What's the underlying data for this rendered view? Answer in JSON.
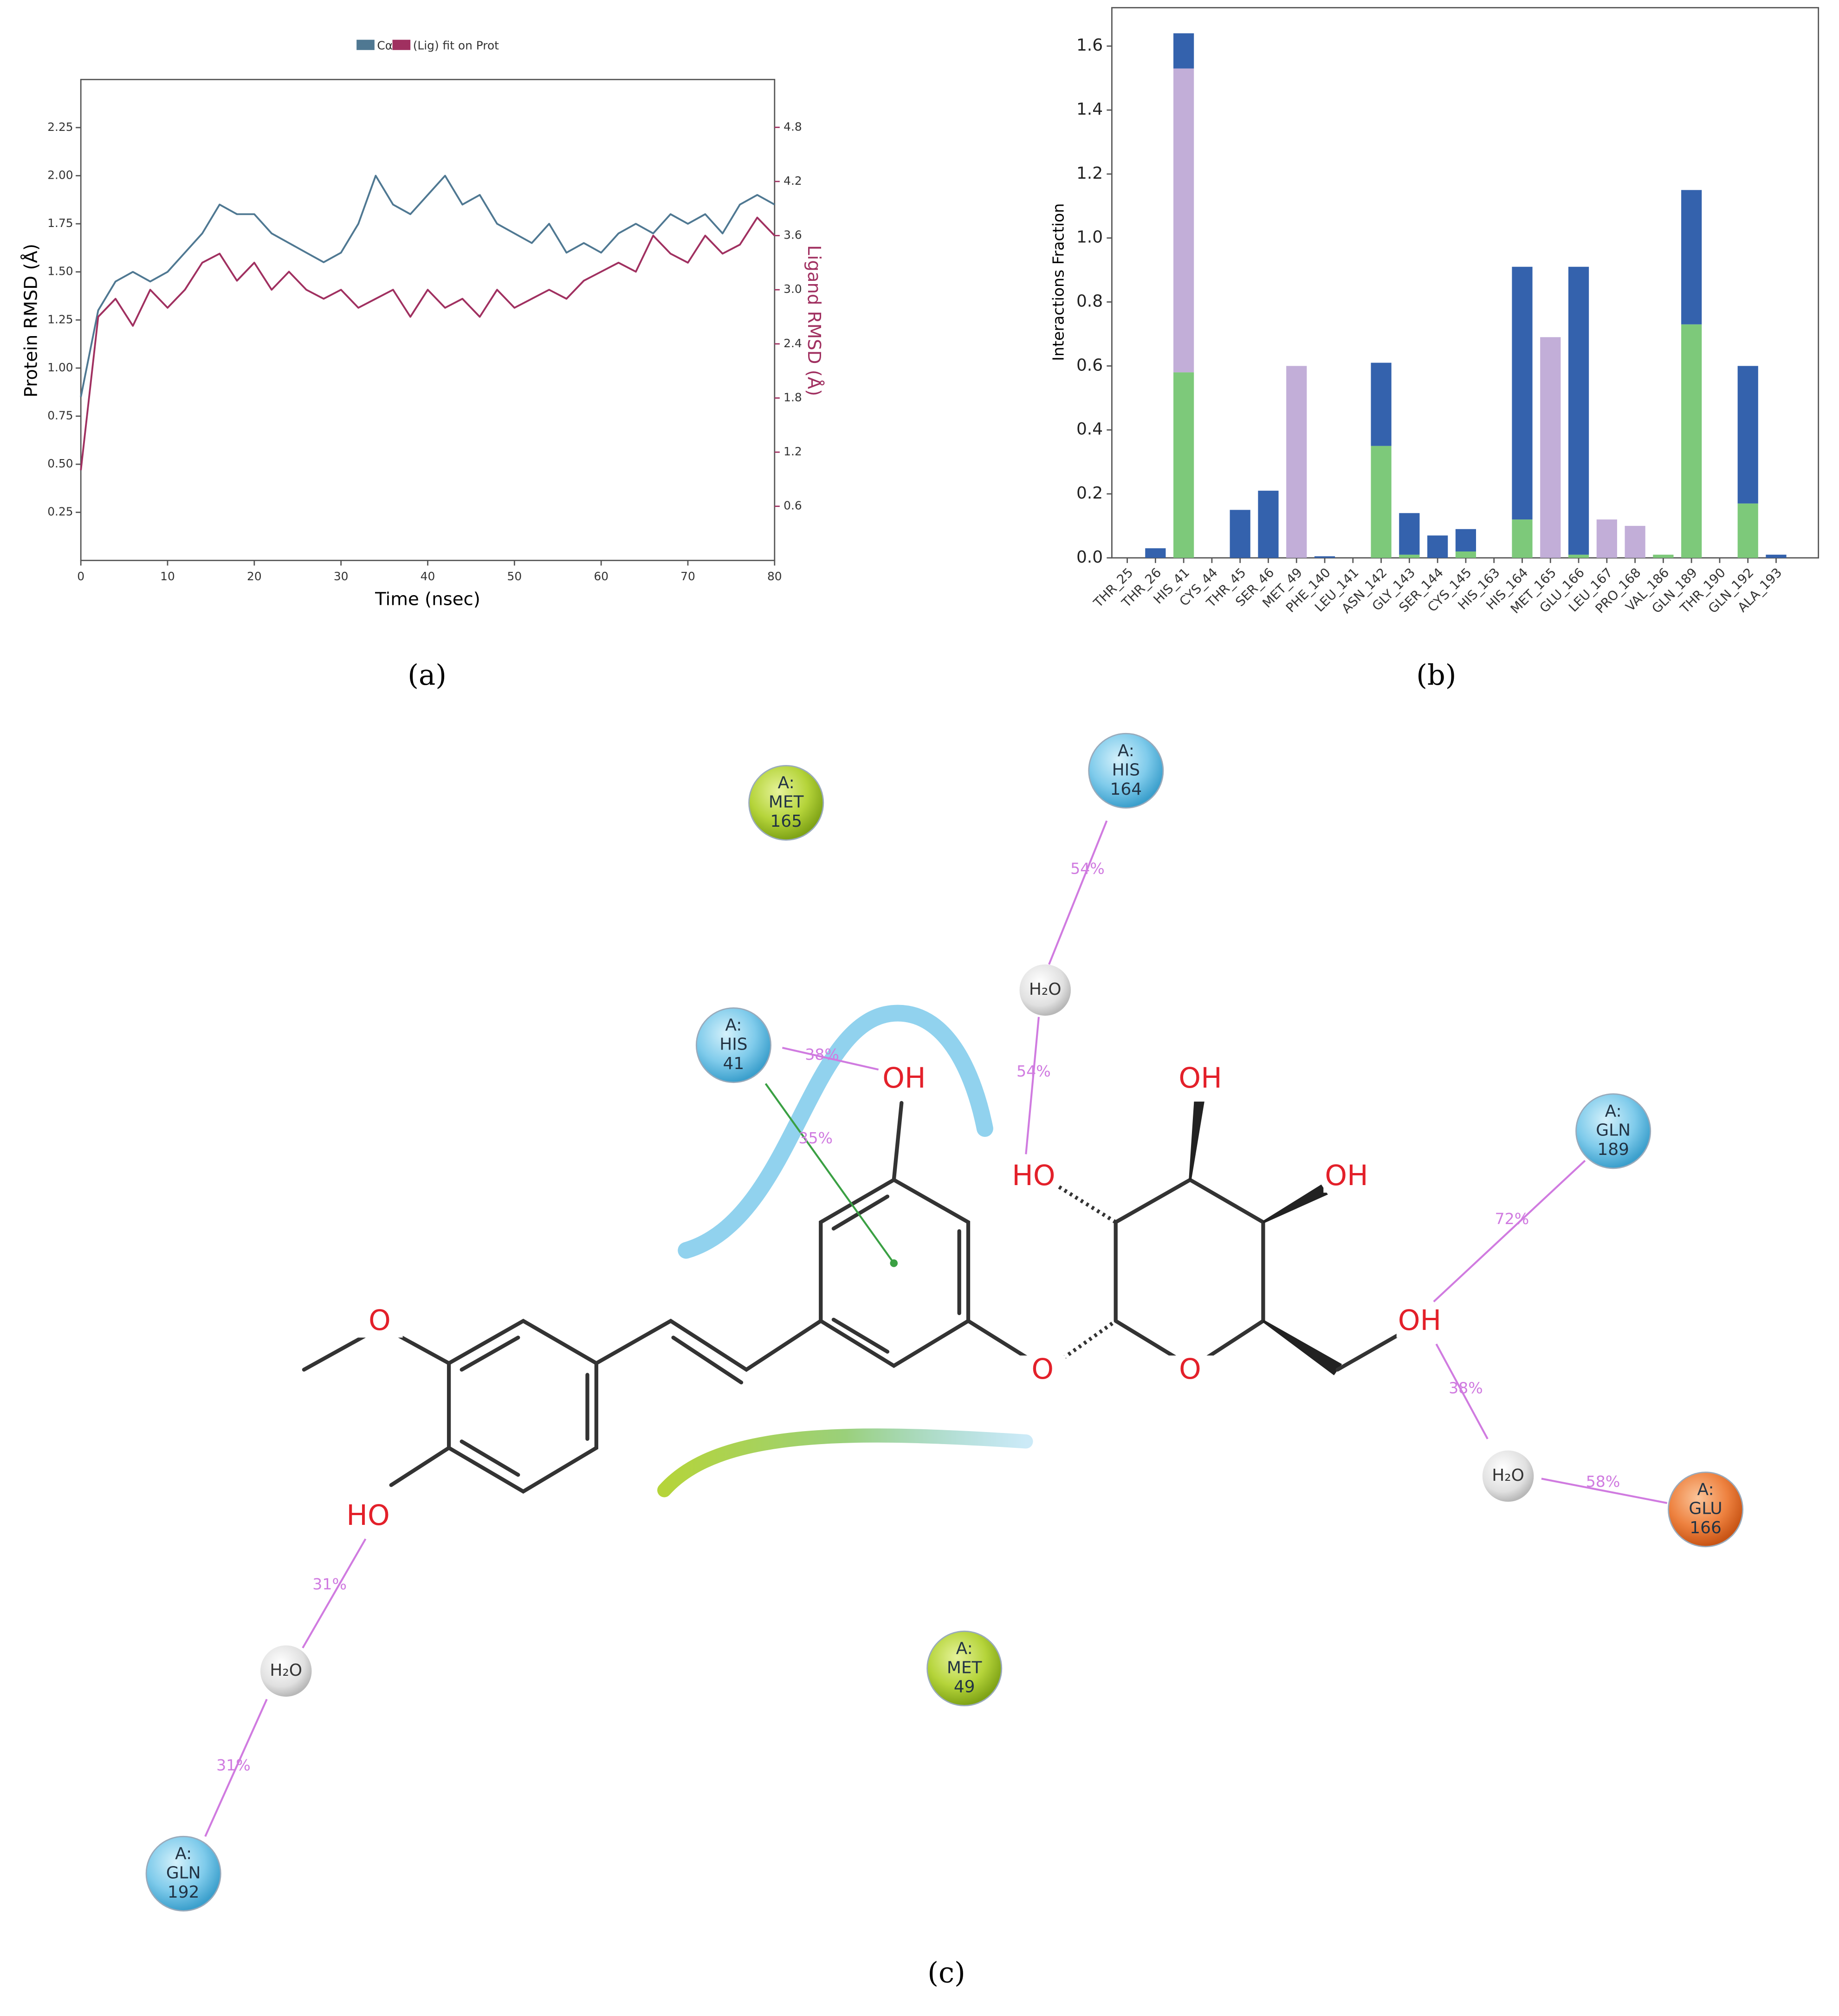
{
  "chart_data": [
    {
      "type": "line",
      "label": "(a)",
      "xlabel": "Time (nsec)",
      "ylabel": "Protein RMSD (Å)",
      "y2label": "Ligand RMSD (Å)",
      "x": [
        0,
        2,
        4,
        6,
        8,
        10,
        12,
        14,
        16,
        18,
        20,
        22,
        24,
        26,
        28,
        30,
        32,
        34,
        36,
        38,
        40,
        42,
        44,
        46,
        48,
        50,
        52,
        54,
        56,
        58,
        60,
        62,
        64,
        66,
        68,
        70,
        72,
        74,
        76,
        78,
        80
      ],
      "series": [
        {
          "name": "Cα",
          "color": "#4f7892",
          "values": [
            0.85,
            1.3,
            1.45,
            1.5,
            1.45,
            1.5,
            1.6,
            1.7,
            1.85,
            1.8,
            1.8,
            1.7,
            1.65,
            1.6,
            1.55,
            1.6,
            1.75,
            2.0,
            1.85,
            1.8,
            1.9,
            2.0,
            1.85,
            1.9,
            1.75,
            1.7,
            1.65,
            1.75,
            1.6,
            1.65,
            1.6,
            1.7,
            1.75,
            1.7,
            1.8,
            1.75,
            1.8,
            1.7,
            1.85,
            1.9,
            1.85
          ]
        },
        {
          "name": "(Lig) fit on Prot",
          "color": "#a03060",
          "axis": "y2",
          "values": [
            1.0,
            2.7,
            2.9,
            2.6,
            3.0,
            2.8,
            3.0,
            3.3,
            3.4,
            3.1,
            3.3,
            3.0,
            3.2,
            3.0,
            2.9,
            3.0,
            2.8,
            2.9,
            3.0,
            2.7,
            3.0,
            2.8,
            2.9,
            2.7,
            3.0,
            2.8,
            2.9,
            3.0,
            2.9,
            3.1,
            3.2,
            3.3,
            3.2,
            3.6,
            3.4,
            3.3,
            3.6,
            3.4,
            3.5,
            3.8,
            3.6
          ]
        }
      ],
      "xlim": [
        0,
        80
      ],
      "xticks": [
        0,
        10,
        20,
        30,
        40,
        50,
        60,
        70,
        80
      ],
      "ylim": [
        0,
        2.5
      ],
      "yticks": [
        0.25,
        {
          "value": 0.5,
          "label": "0.50"
        },
        0.75,
        {
          "value": 1,
          "label": "1.00"
        },
        1.25,
        {
          "value": 1.5,
          "label": "1.50"
        },
        1.75,
        {
          "value": 2,
          "label": "2.00"
        },
        2.25
      ],
      "y2lim": [
        0,
        5.33
      ],
      "y2ticks": [
        0.6,
        1.2,
        1.8,
        2.4,
        {
          "value": 3,
          "label": "3.0"
        },
        3.6,
        4.2,
        4.8
      ],
      "grid": false,
      "legend": "top"
    },
    {
      "type": "bar",
      "label": "(b)",
      "ylabel": "Interactions Fraction",
      "stacked": true,
      "categories": [
        "THR_25",
        "THR_26",
        "HIS_41",
        "CYS_44",
        "THR_45",
        "SER_46",
        "MET_49",
        "PHE_140",
        "LEU_141",
        "ASN_142",
        "GLY_143",
        "SER_144",
        "CYS_145",
        "HIS_163",
        "HIS_164",
        "MET_165",
        "GLU_166",
        "LEU_167",
        "PRO_168",
        "VAL_186",
        "GLN_189",
        "THR_190",
        "GLN_192",
        "ALA_193"
      ],
      "series": [
        {
          "color": "#7dc97a",
          "values": [
            0,
            0,
            0.58,
            0,
            0,
            0,
            0,
            0,
            0,
            0.35,
            0.01,
            0,
            0.02,
            0,
            0.12,
            0,
            0.01,
            0,
            0,
            0.01,
            0.73,
            0,
            0.17,
            0
          ]
        },
        {
          "color": "#c2aed8",
          "values": [
            0,
            0,
            0.95,
            0,
            0,
            0,
            0.6,
            0,
            0,
            0,
            0,
            0,
            0,
            0,
            0,
            0.69,
            0,
            0.12,
            0.1,
            0,
            0,
            0,
            0,
            0
          ]
        },
        {
          "color": "#3462ad",
          "values": [
            0,
            0.03,
            0.11,
            0,
            0.15,
            0.21,
            0,
            0.005,
            0,
            0.26,
            0.13,
            0.07,
            0.07,
            0,
            0.79,
            0,
            0.9,
            0,
            0,
            0,
            0.42,
            0,
            0.43,
            0.01
          ]
        }
      ],
      "ylim": [
        0,
        1.72
      ],
      "yticks": [
        {
          "value": 0,
          "label": "0.0"
        },
        0.2,
        0.4,
        0.6,
        0.8,
        {
          "value": 1,
          "label": "1.0"
        },
        1.2,
        1.4,
        1.6
      ],
      "grid": false
    }
  ],
  "diagram": {
    "label": "(c)",
    "residues": [
      {
        "chain": "A:",
        "name": "MET",
        "number": "165"
      },
      {
        "chain": "A:",
        "name": "HIS",
        "number": "164"
      },
      {
        "chain": "A:",
        "name": "HIS",
        "number": "41"
      },
      {
        "chain": "A:",
        "name": "GLN",
        "number": "189"
      },
      {
        "chain": "A:",
        "name": "GLU",
        "number": "166"
      },
      {
        "chain": "A:",
        "name": "MET",
        "number": "49"
      },
      {
        "chain": "A:",
        "name": "GLN",
        "number": "192"
      }
    ],
    "waters": [
      "H₂O",
      "H₂O",
      "H₂O"
    ],
    "atoms": [
      "OH",
      "OH",
      "HO",
      "OH",
      "O",
      "O",
      "O",
      "OH",
      "HO"
    ],
    "percentages": [
      "54%",
      "54%",
      "38%",
      "35%",
      "72%",
      "38%",
      "58%",
      "31%",
      "31%"
    ]
  }
}
